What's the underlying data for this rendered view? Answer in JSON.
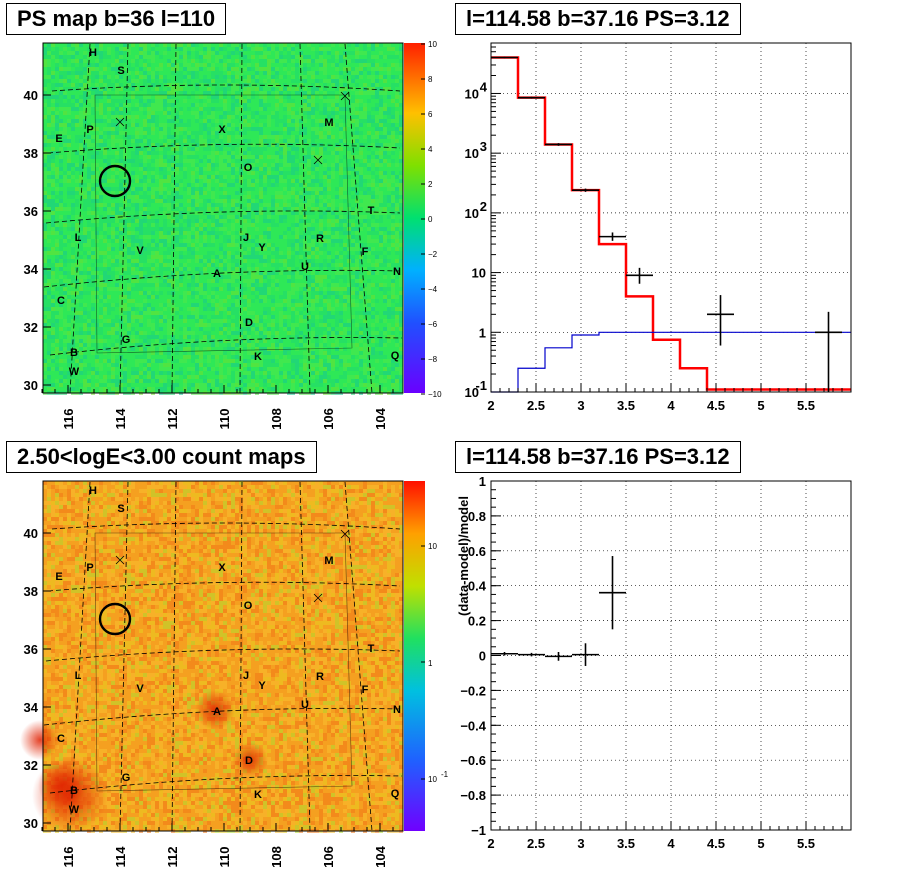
{
  "panels": {
    "top_left_title": "PS map b=36 l=110",
    "top_right_title": "l=114.58 b=37.16 PS=3.12",
    "bottom_left_title": "2.50<logE<3.00 count maps",
    "bottom_right_title": "l=114.58 b=37.16 PS=3.12"
  },
  "maps": {
    "x_ticks": [
      "116",
      "114",
      "112",
      "110",
      "108",
      "106",
      "104"
    ],
    "y_ticks": [
      "30",
      "32",
      "34",
      "36",
      "38",
      "40"
    ],
    "source_labels": [
      "H",
      "S",
      "E",
      "P",
      "X",
      "M",
      "O",
      "T",
      "L",
      "V",
      "J",
      "Y",
      "R",
      "F",
      "U",
      "N",
      "A",
      "C",
      "D",
      "G",
      "B",
      "W",
      "K",
      "Q"
    ],
    "ps_colorbar_ticks": [
      "10",
      "8",
      "6",
      "4",
      "2",
      "0",
      "−2",
      "−4",
      "−6",
      "−8",
      "−10"
    ],
    "count_colorbar_ticks": [
      "10",
      "1",
      "10",
      "-1"
    ],
    "colors": {
      "ps_background": "#2ee857",
      "count_background": "#f5a020"
    }
  },
  "chart_data": [
    {
      "type": "line",
      "panel": "top-right",
      "title": "l=114.58 b=37.16 PS=3.12",
      "xlabel": "",
      "ylabel": "",
      "xlim": [
        2,
        6.0
      ],
      "ylim": [
        0.1,
        70000
      ],
      "yscale": "log",
      "grid": true,
      "x_ticks": [
        "2",
        "2.5",
        "3",
        "3.5",
        "4",
        "4.5",
        "5",
        "5.5"
      ],
      "y_ticks": [
        "10^-1",
        "1",
        "10",
        "10^2",
        "10^3",
        "10^4"
      ],
      "series": [
        {
          "name": "",
          "color": "#ff0000",
          "kind": "step",
          "edges": [
            2.0,
            2.3,
            2.6,
            2.9,
            3.2,
            3.5,
            3.8,
            4.1,
            4.4,
            4.7,
            5.0,
            5.3,
            5.6,
            6.0
          ],
          "values": [
            40000,
            8500,
            1400,
            240,
            30,
            4.0,
            0.75,
            0.25,
            0.11,
            0.11,
            0.11,
            0.11,
            0.11
          ]
        },
        {
          "name": "",
          "color": "#0000cc",
          "kind": "step",
          "edges": [
            2.0,
            2.3,
            2.6,
            2.9,
            3.2,
            3.5,
            3.8,
            4.1,
            4.4,
            4.7,
            5.0,
            5.3,
            5.6,
            6.0
          ],
          "values": [
            0.1,
            0.25,
            0.55,
            0.9,
            1.0,
            1.0,
            1.0,
            1.0,
            1.0,
            1.0,
            1.0,
            1.0,
            1.0
          ]
        },
        {
          "name": "",
          "color": "#000000",
          "kind": "points",
          "points": [
            {
              "x": 2.15,
              "y": 40000,
              "ylo": 39000,
              "yhi": 41000,
              "xerr": 0.15
            },
            {
              "x": 2.45,
              "y": 8500,
              "ylo": 8200,
              "yhi": 8800,
              "xerr": 0.15
            },
            {
              "x": 2.75,
              "y": 1400,
              "ylo": 1330,
              "yhi": 1470,
              "xerr": 0.15
            },
            {
              "x": 3.05,
              "y": 240,
              "ylo": 225,
              "yhi": 255,
              "xerr": 0.15
            },
            {
              "x": 3.35,
              "y": 40,
              "ylo": 34,
              "yhi": 47,
              "xerr": 0.15
            },
            {
              "x": 3.65,
              "y": 9,
              "ylo": 6.5,
              "yhi": 12,
              "xerr": 0.15
            },
            {
              "x": 4.55,
              "y": 2,
              "ylo": 0.6,
              "yhi": 4.2,
              "xerr": 0.15
            },
            {
              "x": 5.75,
              "y": 1,
              "ylo": 0.1,
              "yhi": 2.2,
              "xerr": 0.15
            }
          ]
        }
      ]
    },
    {
      "type": "scatter",
      "panel": "bottom-right",
      "title": "l=114.58 b=37.16 PS=3.12",
      "xlabel": "",
      "ylabel": "(data-model)/model",
      "xlim": [
        2,
        6.0
      ],
      "ylim": [
        -1,
        1
      ],
      "grid": true,
      "x_ticks": [
        "2",
        "2.5",
        "3",
        "3.5",
        "4",
        "4.5",
        "5",
        "5.5"
      ],
      "y_ticks": [
        "−1",
        "−0.8",
        "−0.6",
        "−0.4",
        "−0.2",
        "0",
        "0.2",
        "0.4",
        "0.6",
        "0.8",
        "1"
      ],
      "series": [
        {
          "name": "",
          "color": "#000000",
          "points": [
            {
              "x": 2.15,
              "y": 0.01,
              "err": 0.01,
              "xerr": 0.15
            },
            {
              "x": 2.45,
              "y": 0.005,
              "err": 0.01,
              "xerr": 0.15
            },
            {
              "x": 2.75,
              "y": -0.005,
              "err": 0.025,
              "xerr": 0.15
            },
            {
              "x": 3.05,
              "y": 0.005,
              "err": 0.065,
              "xerr": 0.15
            },
            {
              "x": 3.35,
              "y": 0.36,
              "err": 0.21,
              "xerr": 0.15
            }
          ]
        }
      ]
    }
  ]
}
